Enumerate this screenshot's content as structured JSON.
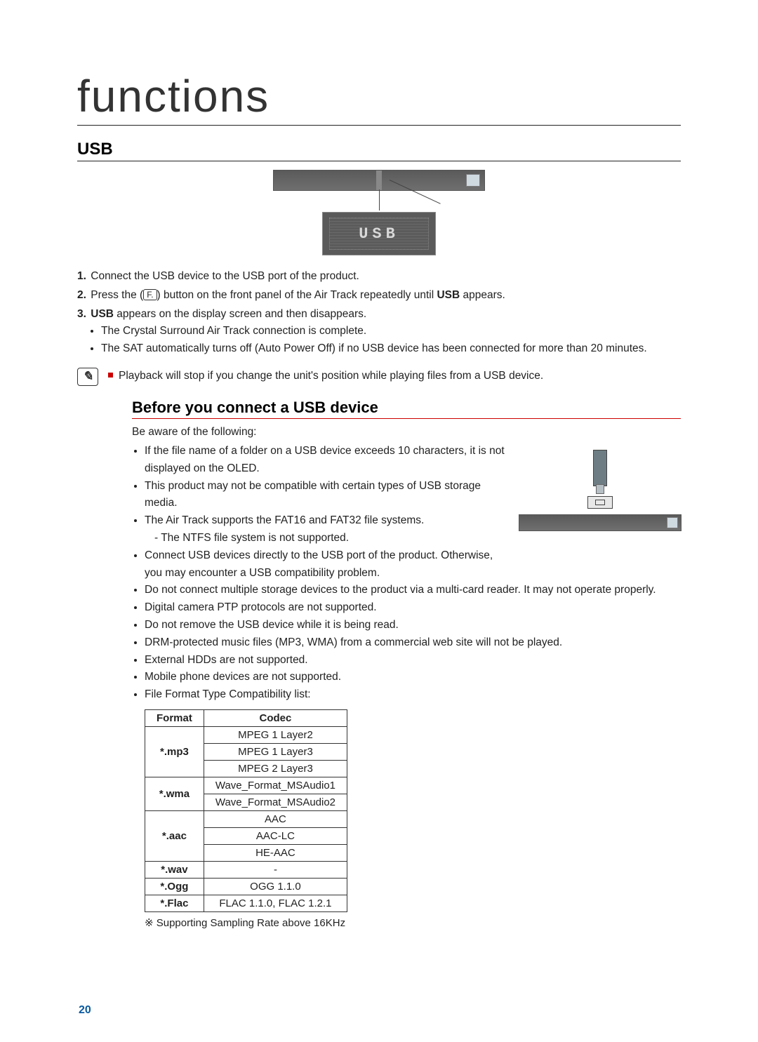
{
  "accent_color": "#c00",
  "link_color": "#0a5aa0",
  "page_number": "20",
  "title": "functions",
  "section_title": "USB",
  "display_text": "USB",
  "steps": {
    "s1_num": "1.",
    "s1": "Connect the USB device to the USB port of the product.",
    "s2_num": "2.",
    "s2a": "Press the (",
    "s2_btn": "F.",
    "s2b": ") button on the front panel of the Air Track repeatedly until ",
    "s2_bold": "USB",
    "s2c": " appears.",
    "s3_num": "3.",
    "s3_bold": "USB",
    "s3": " appears on the display screen and then disappears.",
    "s3_sub1": "The Crystal Surround Air Track connection is complete.",
    "s3_sub2": "The SAT automatically turns off (Auto Power Off) if no USB device has been connected for more than 20 minutes."
  },
  "note": "Playback will stop if you change the unit's position while playing files from a USB device.",
  "sub_heading": "Before you connect a USB device",
  "aware": "Be aware of the following:",
  "bullets": {
    "b1": "If the file name of a folder on a USB device exceeds 10 characters, it is not displayed on the OLED.",
    "b2": "This product may not be compatible with certain types of USB storage media.",
    "b3": "The Air Track supports the FAT16 and FAT32 file systems.",
    "b3a": "The NTFS file system is not supported.",
    "b4": "Connect USB devices directly to the USB port of the product. Otherwise, you may encounter a USB compatibility problem.",
    "b5": "Do not connect multiple storage devices to the product via a multi-card reader. It may not operate properly.",
    "b6": "Digital camera PTP protocols are not supported.",
    "b7": "Do not remove the USB device while it is being read.",
    "b8": "DRM-protected music files (MP3, WMA) from a commercial web site will not be played.",
    "b9": "External HDDs are not supported.",
    "b10": "Mobile phone devices are not supported.",
    "b11": "File Format Type Compatibility list:"
  },
  "table": {
    "head_format": "Format",
    "head_codec": "Codec",
    "rows": [
      {
        "fmt": "*.mp3",
        "span": 3,
        "codec": "MPEG 1 Layer2"
      },
      {
        "codec": "MPEG 1 Layer3"
      },
      {
        "codec": "MPEG 2 Layer3"
      },
      {
        "fmt": "*.wma",
        "span": 2,
        "codec": "Wave_Format_MSAudio1"
      },
      {
        "codec": "Wave_Format_MSAudio2"
      },
      {
        "fmt": "*.aac",
        "span": 3,
        "codec": "AAC"
      },
      {
        "codec": "AAC-LC"
      },
      {
        "codec": "HE-AAC"
      },
      {
        "fmt": "*.wav",
        "span": 1,
        "codec": "-"
      },
      {
        "fmt": "*.Ogg",
        "span": 1,
        "codec": "OGG 1.1.0"
      },
      {
        "fmt": "*.Flac",
        "span": 1,
        "codec": "FLAC 1.1.0, FLAC 1.2.1"
      }
    ]
  },
  "footnote_mark": "※",
  "footnote": " Supporting Sampling Rate above 16KHz"
}
